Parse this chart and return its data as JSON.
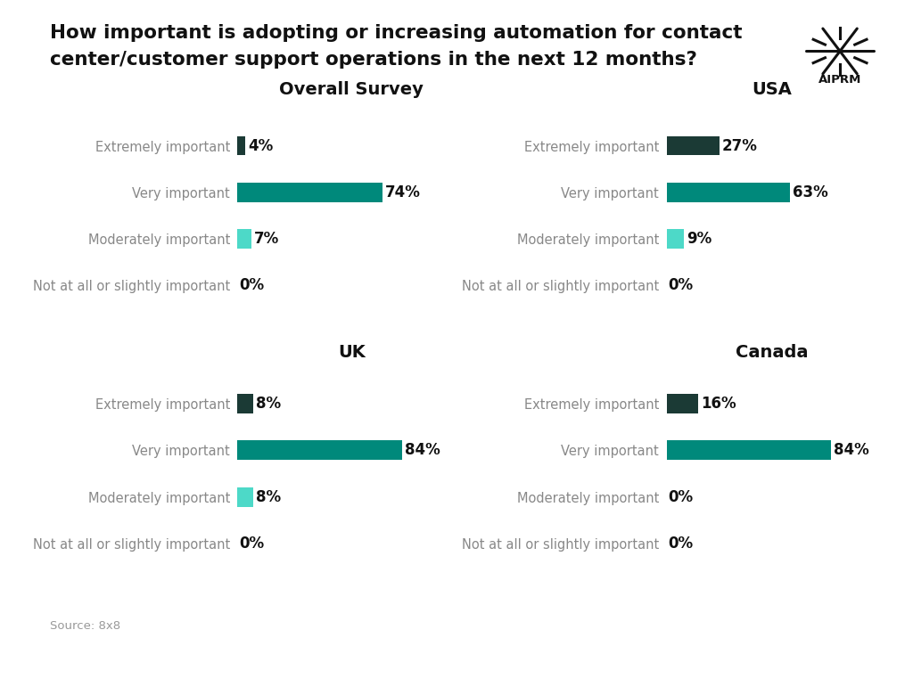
{
  "title_line1": "How important is adopting or increasing automation for contact",
  "title_line2": "center/customer support operations in the next 12 months?",
  "source": "Source: 8x8",
  "background_color": "#FFFFFF",
  "categories": [
    "Extremely important",
    "Very important",
    "Moderately important",
    "Not at all or slightly important"
  ],
  "charts": [
    {
      "title": "Overall Survey",
      "values": [
        4,
        74,
        7,
        0
      ],
      "colors": [
        "#1b3a35",
        "#00897b",
        "#4dd9c8",
        null
      ]
    },
    {
      "title": "USA",
      "values": [
        27,
        63,
        9,
        0
      ],
      "colors": [
        "#1b3a35",
        "#00897b",
        "#4dd9c8",
        null
      ]
    },
    {
      "title": "UK",
      "values": [
        8,
        84,
        8,
        0
      ],
      "colors": [
        "#1b3a35",
        "#00897b",
        "#4dd9c8",
        null
      ]
    },
    {
      "title": "Canada",
      "values": [
        16,
        84,
        0,
        0
      ],
      "colors": [
        "#1b3a35",
        "#00897b",
        "#4dd9c8",
        null
      ]
    }
  ],
  "title_fontsize": 15.5,
  "chart_title_fontsize": 14,
  "label_fontsize": 10.5,
  "value_fontsize": 12,
  "bar_height": 0.42,
  "dark_teal": "#1b3a35",
  "medium_teal": "#00897b",
  "light_teal": "#4dd9c8",
  "label_color": "#888888",
  "value_color": "#111111",
  "title_color": "#111111"
}
